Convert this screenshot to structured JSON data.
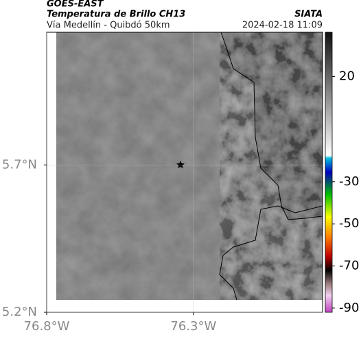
{
  "header": {
    "source": "GOES-EAST",
    "product": "Temperatura de Brillo CH13",
    "org": "SIATA",
    "route": "Vía Medellín - Quibdó 50km",
    "datetime": "2024-02-18 11:09"
  },
  "map": {
    "xlim": [
      -76.8,
      -75.86
    ],
    "ylim": [
      5.2,
      6.15
    ],
    "xticks": [
      {
        "value": -76.8,
        "label": "76.8°W"
      },
      {
        "value": -76.3,
        "label": "76.3°W"
      }
    ],
    "yticks": [
      {
        "value": 5.7,
        "label": "5.7°N"
      },
      {
        "value": 5.2,
        "label": "5.2°N"
      }
    ]
  },
  "colorbar": {
    "lim": [
      -92,
      41
    ],
    "ticks": [
      20,
      -30,
      -50,
      -70,
      -90
    ]
  }
}
